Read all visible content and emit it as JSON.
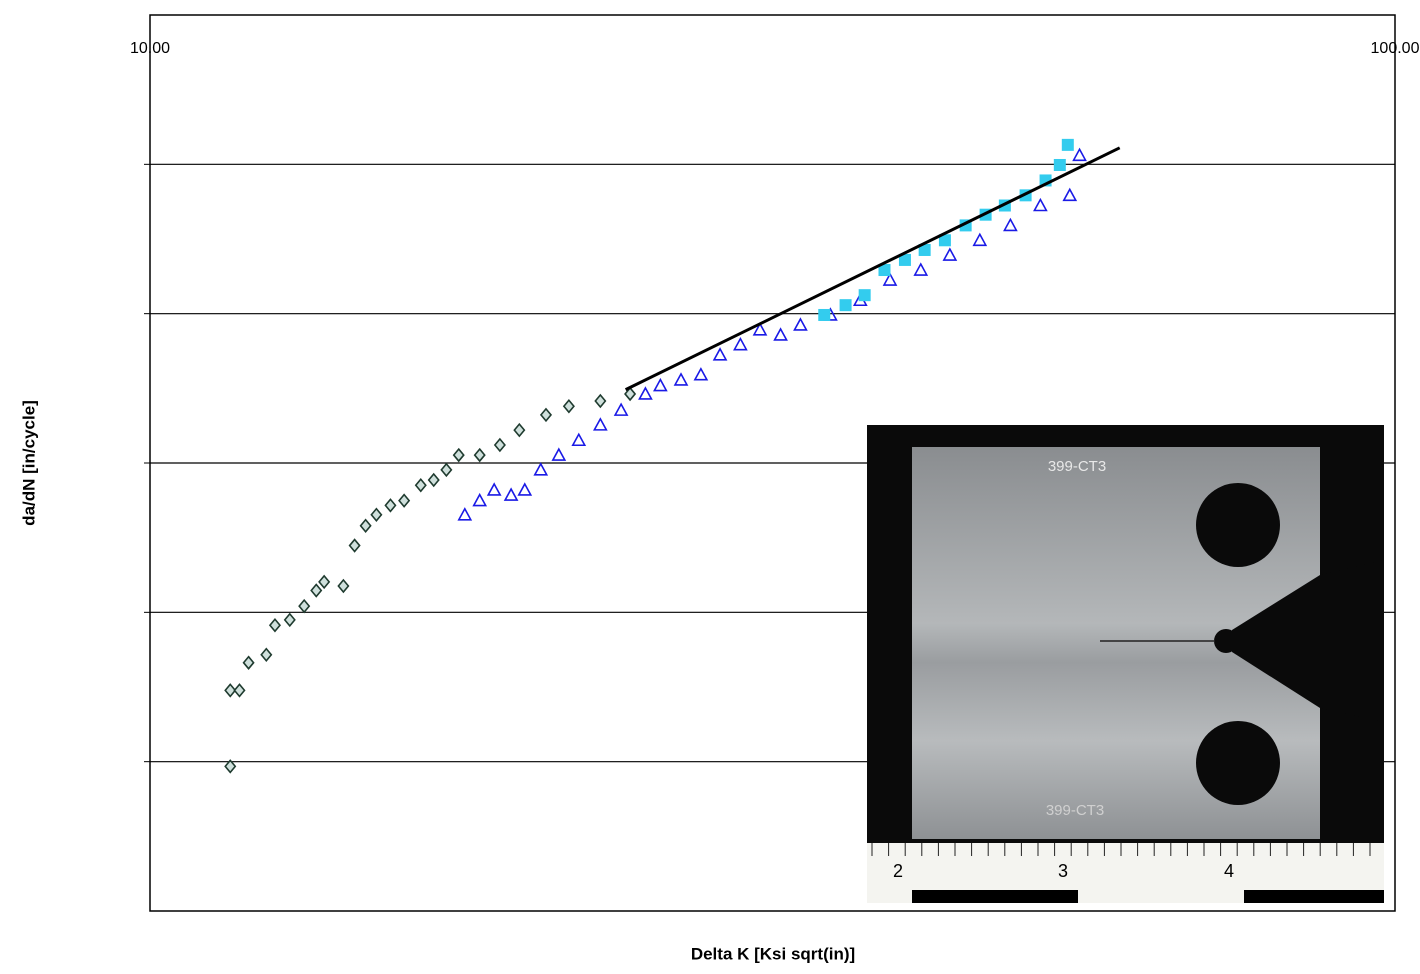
{
  "chart_data": {
    "type": "scatter",
    "x_label": "Delta K [Ksi sqrt(in)]",
    "y_label": "da/dN [in/cycle]",
    "x_log": true,
    "y_log": true,
    "grid": true,
    "xlim": [
      10,
      100
    ],
    "xticks": [
      {
        "value": 10,
        "label": "10.00"
      },
      {
        "value": 100,
        "label": "100.00"
      }
    ],
    "ylim": [
      1e-08,
      0.01
    ],
    "yticks": [
      1e-07,
      1e-06,
      1e-05,
      0.0001,
      0.001
    ],
    "series": [
      {
        "color": "#1f3b2f",
        "marker": "diamond",
        "x": [
          11.6,
          11.6,
          11.8,
          12.0,
          12.4,
          12.6,
          12.95,
          13.3,
          13.6,
          13.8,
          14.3,
          14.6,
          14.9,
          15.2,
          15.6,
          16.0,
          16.5,
          16.9,
          17.3,
          17.7,
          18.4,
          19.1,
          19.8,
          20.8,
          21.7,
          23.0,
          24.3
        ],
        "values": [
          9.3e-08,
          3e-07,
          3e-07,
          4.6e-07,
          5.2e-07,
          8.2e-07,
          8.9e-07,
          1.1e-06,
          1.4e-06,
          1.6e-06,
          1.5e-06,
          2.8e-06,
          3.8e-06,
          4.5e-06,
          5.2e-06,
          5.6e-06,
          7.1e-06,
          7.7e-06,
          9e-06,
          1.13e-05,
          1.13e-05,
          1.32e-05,
          1.66e-05,
          2.1e-05,
          2.4e-05,
          2.6e-05,
          2.9e-05
        ]
      },
      {
        "color": "#1a1ae6",
        "marker": "triangle",
        "x": [
          17.9,
          18.4,
          18.9,
          19.5,
          20.0,
          20.6,
          21.3,
          22.1,
          23.0,
          23.9,
          25.0,
          25.7,
          26.7,
          27.7,
          28.7,
          29.8,
          30.9,
          32.1,
          33.3,
          35.2,
          37.2,
          39.3,
          41.6,
          43.9,
          46.4,
          49.1,
          51.9,
          54.8,
          55.8
        ],
        "values": [
          4.5e-06,
          5.6e-06,
          6.6e-06,
          6.1e-06,
          6.6e-06,
          9e-06,
          1.13e-05,
          1.42e-05,
          1.8e-05,
          2.26e-05,
          2.9e-05,
          3.3e-05,
          3.6e-05,
          3.9e-05,
          5.3e-05,
          6.2e-05,
          7.8e-05,
          7.2e-05,
          8.4e-05,
          9.8e-05,
          0.000123,
          0.000168,
          0.000196,
          0.000247,
          0.00031,
          0.00039,
          0.00053,
          0.00062,
          0.00115
        ]
      },
      {
        "color": "#33ccee",
        "marker": "square",
        "x": [
          34.8,
          36.2,
          37.5,
          38.9,
          40.4,
          41.9,
          43.5,
          45.2,
          46.9,
          48.6,
          50.5,
          52.4,
          53.8,
          54.6
        ],
        "values": [
          9.8e-05,
          0.000114,
          0.000133,
          0.000196,
          0.000229,
          0.000267,
          0.00031,
          0.00039,
          0.00046,
          0.00053,
          0.00062,
          0.00078,
          0.00099,
          0.00135
        ]
      },
      {
        "color": "#000000",
        "marker": "line",
        "x": [
          24.1,
          60.1
        ],
        "values": [
          3.1e-05,
          0.00129
        ]
      }
    ]
  },
  "inset_photo": {
    "plate_labels": [
      "399-CT3",
      "399-CT3"
    ],
    "ruler_labels": [
      "2",
      "3",
      "4"
    ]
  }
}
